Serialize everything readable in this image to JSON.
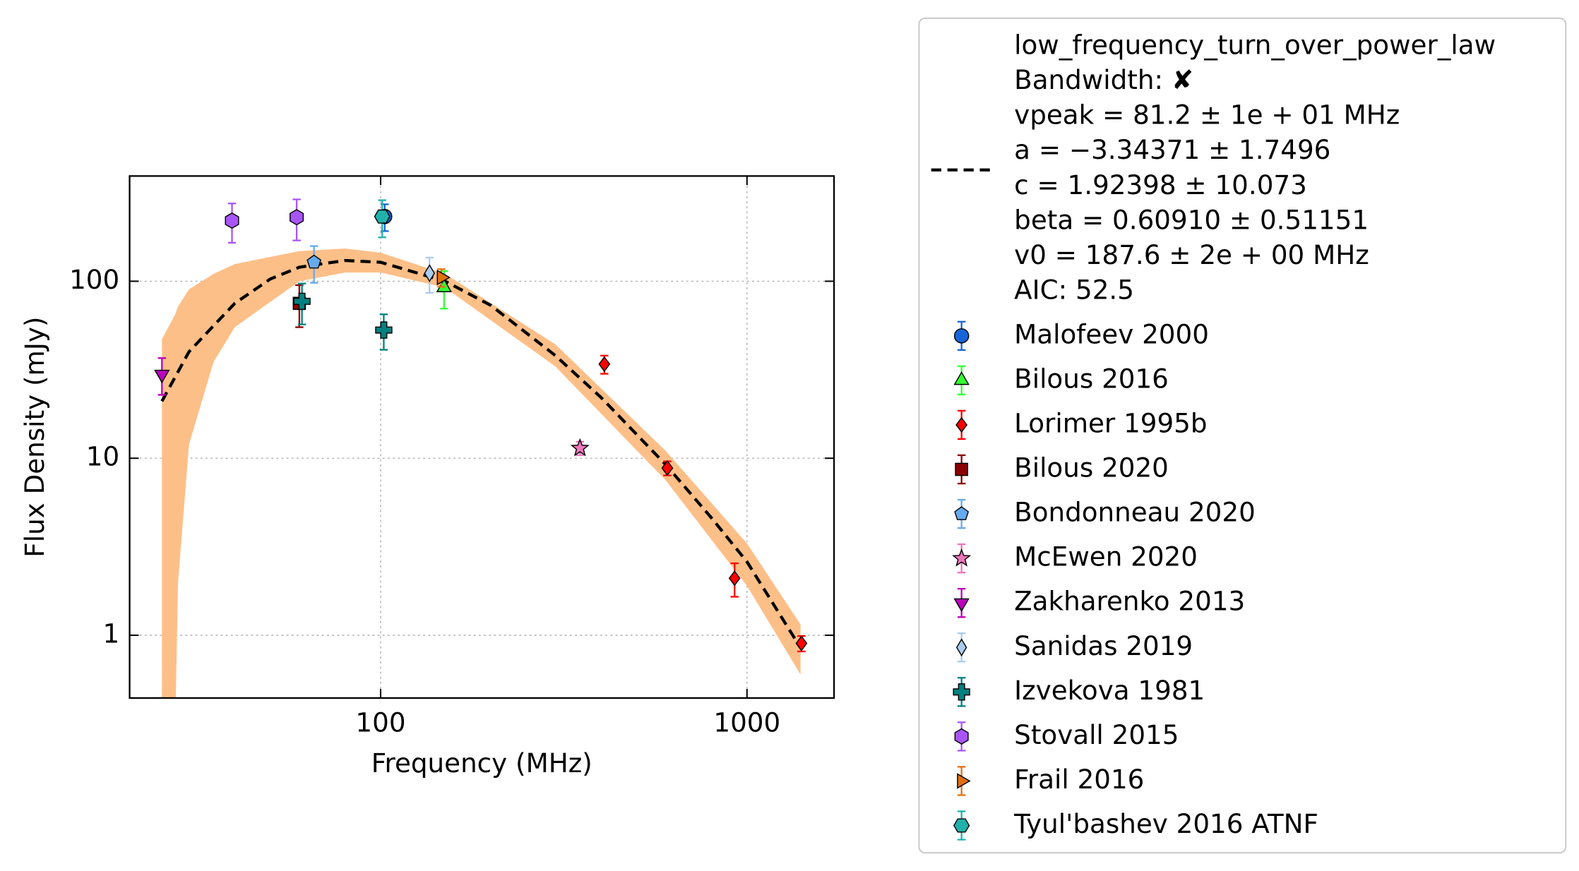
{
  "chart_data": {
    "type": "scatter",
    "xlabel": "Frequency (MHz)",
    "ylabel": "Flux Density (mJy)",
    "xscale": "log",
    "yscale": "log",
    "xlim": [
      20.65,
      1728
    ],
    "ylim": [
      0.442,
      393
    ],
    "xticks": [
      100,
      1000
    ],
    "yticks": [
      1,
      10,
      100
    ],
    "grid": true,
    "legend": "outside right",
    "fit": {
      "label_lines": [
        "low_frequency_turn_over_power_law",
        "Bandwidth: ✘",
        "vpeak = 81.2 ± 1e + 01 MHz",
        "a = −3.34371 ± 1.7496",
        "c = 1.92398 ± 10.073",
        "beta = 0.60910 ± 0.51151",
        "v0 = 187.6 ± 2e + 00 MHz",
        "AIC: 52.5"
      ],
      "color": "#000000",
      "band_color": "#fdbf88",
      "x": [
        25.3,
        30,
        40,
        50,
        60,
        80,
        100,
        150,
        200,
        300,
        400,
        600,
        800,
        1000,
        1400
      ],
      "values": [
        21,
        40,
        75,
        103,
        120,
        131,
        128,
        100,
        73,
        38,
        22,
        9.2,
        4.6,
        2.6,
        0.85
      ],
      "band_x": [
        25.3,
        27.5,
        28,
        30,
        35,
        40,
        60,
        80,
        100,
        150,
        300,
        600,
        1000,
        1400
      ],
      "band_upper": [
        47,
        65,
        72,
        90,
        110,
        125,
        148,
        153,
        145,
        110,
        44,
        11,
        3.3,
        1.15
      ],
      "band_lower": [
        0.3,
        0.3,
        2,
        12,
        35,
        55,
        100,
        112,
        112,
        92,
        33,
        7.5,
        1.9,
        0.6
      ]
    },
    "series": [
      {
        "name": "Malofeev 2000",
        "color": "#1565d8",
        "marker": "circle",
        "x": [
          102.6
        ],
        "values": [
          232
        ],
        "errors": [
          40
        ]
      },
      {
        "name": "Bilous 2016",
        "color": "#33ff33",
        "marker": "triangle-up",
        "x": [
          149
        ],
        "values": [
          92
        ],
        "errors": [
          22
        ]
      },
      {
        "name": "Lorimer 1995b",
        "color": "#ff0000",
        "marker": "diamond",
        "x": [
          408,
          606,
          925,
          1408
        ],
        "values": [
          34,
          8.8,
          2.1,
          0.9
        ],
        "errors": [
          4,
          0.8,
          0.45,
          0.09
        ]
      },
      {
        "name": "Bilous 2020",
        "color": "#8b0000",
        "marker": "square",
        "x": [
          60
        ],
        "values": [
          75
        ],
        "errors": [
          20
        ]
      },
      {
        "name": "Bondonneau 2020",
        "color": "#66aaee",
        "marker": "pentagon",
        "x": [
          65.8
        ],
        "values": [
          128
        ],
        "errors": [
          30
        ]
      },
      {
        "name": "McEwen 2020",
        "color": "#ee77bb",
        "marker": "star",
        "x": [
          350
        ],
        "values": [
          11.4
        ],
        "errors": [
          1
        ]
      },
      {
        "name": "Zakharenko 2013",
        "color": "#bb00bb",
        "marker": "triangle-down",
        "x": [
          25.3
        ],
        "values": [
          29.8
        ],
        "errors": [
          7
        ]
      },
      {
        "name": "Sanidas 2019",
        "color": "#aaccee",
        "marker": "thin-diamond",
        "x": [
          136
        ],
        "values": [
          111
        ],
        "errors": [
          25
        ]
      },
      {
        "name": "Izvekova 1981",
        "color": "#008080",
        "marker": "plus",
        "x": [
          61,
          102
        ],
        "values": [
          77,
          53
        ],
        "errors": [
          20,
          12
        ]
      },
      {
        "name": "Stovall 2015",
        "color": "#a855f7",
        "marker": "hexagon",
        "x": [
          39.3,
          59
        ],
        "values": [
          220,
          230
        ],
        "errors": [
          55,
          60
        ]
      },
      {
        "name": "Frail 2016",
        "color": "#e07010",
        "marker": "triangle-right",
        "x": [
          146.5
        ],
        "values": [
          105
        ],
        "errors": [
          12
        ]
      },
      {
        "name": "Tyul'bashev 2016 ATNF",
        "color": "#20b2aa",
        "marker": "hexagon2",
        "x": [
          101
        ],
        "values": [
          232
        ],
        "errors": [
          55
        ]
      }
    ]
  }
}
